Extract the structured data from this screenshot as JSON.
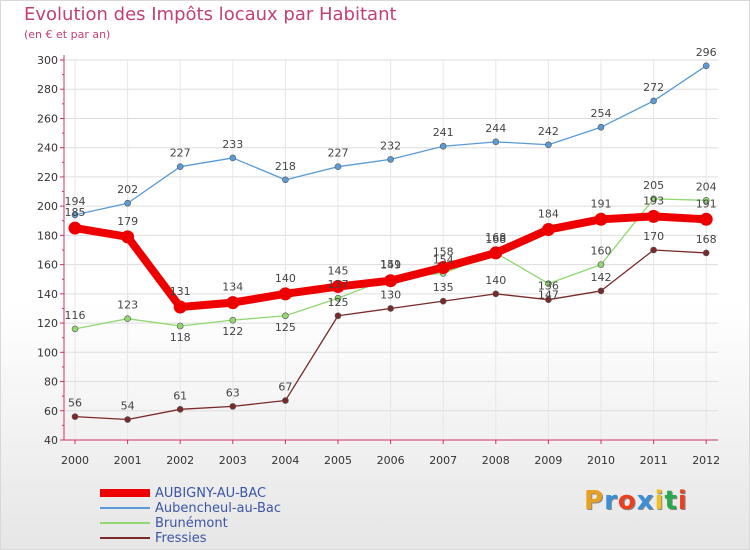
{
  "header": {
    "title": "Evolution des Impôts locaux par Habitant",
    "subtitle": "(en € et par an)"
  },
  "logo": {
    "letters": [
      "P",
      "r",
      "o",
      "x",
      "i",
      "t",
      "i"
    ],
    "colors": [
      "#e8a020",
      "#3a8fd8",
      "#e84020",
      "#3a8fd8",
      "#f0c020",
      "#2aa84a",
      "#e84020"
    ]
  },
  "chart_data": {
    "type": "line",
    "title": "Evolution des Impôts locaux par Habitant",
    "subtitle": "(en € et par an)",
    "xlabel": "",
    "ylabel": "",
    "ylim": [
      40,
      300
    ],
    "yticks": [
      40,
      60,
      80,
      100,
      120,
      140,
      160,
      180,
      200,
      220,
      240,
      260,
      280,
      300
    ],
    "grid": true,
    "legend_position": "bottom-left",
    "categories": [
      "2000",
      "2001",
      "2002",
      "2003",
      "2004",
      "2005",
      "2006",
      "2007",
      "2008",
      "2009",
      "2010",
      "2011",
      "2012"
    ],
    "series": [
      {
        "name": "AUBIGNY-AU-BAC",
        "color": "#ee0000",
        "emphasis": true,
        "values": [
          185,
          179,
          131,
          134,
          140,
          145,
          149,
          158,
          168,
          184,
          191,
          193,
          191
        ]
      },
      {
        "name": "Aubencheul-au-Bac",
        "color": "#5b9bd5",
        "emphasis": false,
        "values": [
          194,
          202,
          227,
          233,
          218,
          227,
          232,
          241,
          244,
          242,
          254,
          272,
          296
        ]
      },
      {
        "name": "Brunémont",
        "color": "#90d870",
        "emphasis": false,
        "values": [
          116,
          123,
          118,
          122,
          125,
          137,
          151,
          154,
          168,
          147,
          160,
          205,
          204
        ]
      },
      {
        "name": "Fressies",
        "color": "#7a2a2a",
        "emphasis": false,
        "values": [
          56,
          54,
          61,
          63,
          67,
          125,
          130,
          135,
          140,
          136,
          142,
          170,
          168
        ]
      }
    ]
  }
}
